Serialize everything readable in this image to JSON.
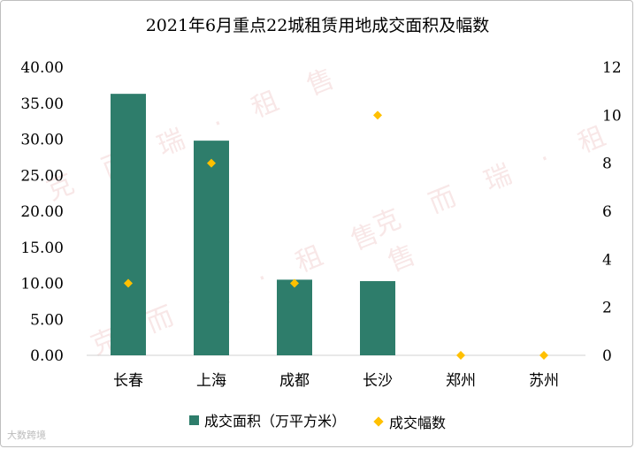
{
  "chart_data": {
    "type": "bar",
    "title": "2021年6月重点22城租赁用地成交面积及幅数",
    "categories": [
      "长春",
      "上海",
      "成都",
      "长沙",
      "郑州",
      "苏州"
    ],
    "series": [
      {
        "name": "成交面积（万平方米）",
        "type": "bar",
        "axis": "left",
        "color": "#2e7d6b",
        "values": [
          36.3,
          29.8,
          10.5,
          10.3,
          0,
          0
        ]
      },
      {
        "name": "成交幅数",
        "type": "scatter",
        "marker": "diamond",
        "axis": "right",
        "color": "#ffc000",
        "values": [
          3,
          8,
          3,
          10,
          0,
          0
        ]
      }
    ],
    "y_left": {
      "ylim": [
        0,
        40
      ],
      "ticks": [
        "0.00",
        "5.00",
        "10.00",
        "15.00",
        "20.00",
        "25.00",
        "30.00",
        "35.00",
        "40.00"
      ]
    },
    "y_right": {
      "ylim": [
        0,
        12
      ],
      "ticks": [
        "0",
        "2",
        "4",
        "6",
        "8",
        "10",
        "12"
      ]
    },
    "grid": false,
    "legend": "bottom"
  },
  "watermark": "克 而 瑞 · 租 售",
  "source": "大数跨境"
}
